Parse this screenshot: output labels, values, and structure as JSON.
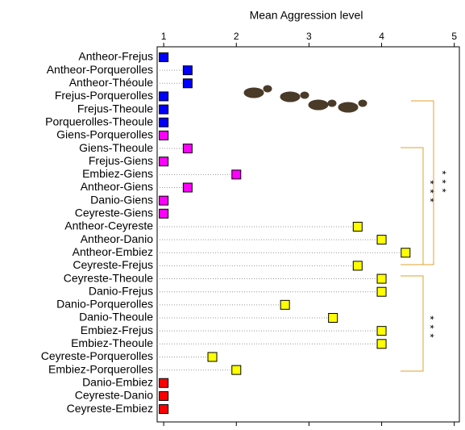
{
  "chart_data": {
    "type": "dot",
    "x_label": "Mean Aggression level",
    "categories": [
      "Antheor-Frejus",
      "Antheor-Porquerolles",
      "Antheor-Théoule",
      "Frejus-Porquerolles",
      "Frejus-Theoule",
      "Porquerolles-Theoule",
      "Giens-Porquerolles",
      "Giens-Theoule",
      "Frejus-Giens",
      "Embiez-Giens",
      "Antheor-Giens",
      "Danio-Giens",
      "Ceyreste-Giens",
      "Antheor-Ceyreste",
      "Antheor-Danio",
      "Antheor-Embiez",
      "Ceyreste-Frejus",
      "Ceyreste-Theoule",
      "Danio-Frejus",
      "Danio-Porquerolles",
      "Danio-Theoule",
      "Embiez-Frejus",
      "Embiez-Theoule",
      "Ceyreste-Porquerolles",
      "Embiez-Porquerolles",
      "Danio-Embiez",
      "Ceyreste-Danio",
      "Ceyreste-Embiez"
    ],
    "values": [
      1,
      1.33,
      1.33,
      1,
      1,
      1,
      1,
      1.33,
      1,
      2,
      1.33,
      1,
      1,
      3.67,
      4,
      4.33,
      3.67,
      4,
      4,
      2.67,
      3.33,
      4,
      4,
      1.67,
      2,
      1,
      1,
      1
    ],
    "colors": [
      "#0000ff",
      "#0000ff",
      "#0000ff",
      "#0000ff",
      "#0000ff",
      "#0000ff",
      "#ff00ff",
      "#ff00ff",
      "#ff00ff",
      "#ff00ff",
      "#ff00ff",
      "#ff00ff",
      "#ff00ff",
      "#ffff00",
      "#ffff00",
      "#ffff00",
      "#ffff00",
      "#ffff00",
      "#ffff00",
      "#ffff00",
      "#ffff00",
      "#ffff00",
      "#ffff00",
      "#ffff00",
      "#ffff00",
      "#ff0000",
      "#ff0000",
      "#ff0000"
    ],
    "xlim": [
      0.91,
      5.07
    ],
    "xticks": [
      1,
      2,
      3,
      4,
      5
    ],
    "bracket_color": "#e0a030",
    "annotations": [
      "***",
      "***",
      "***"
    ]
  }
}
